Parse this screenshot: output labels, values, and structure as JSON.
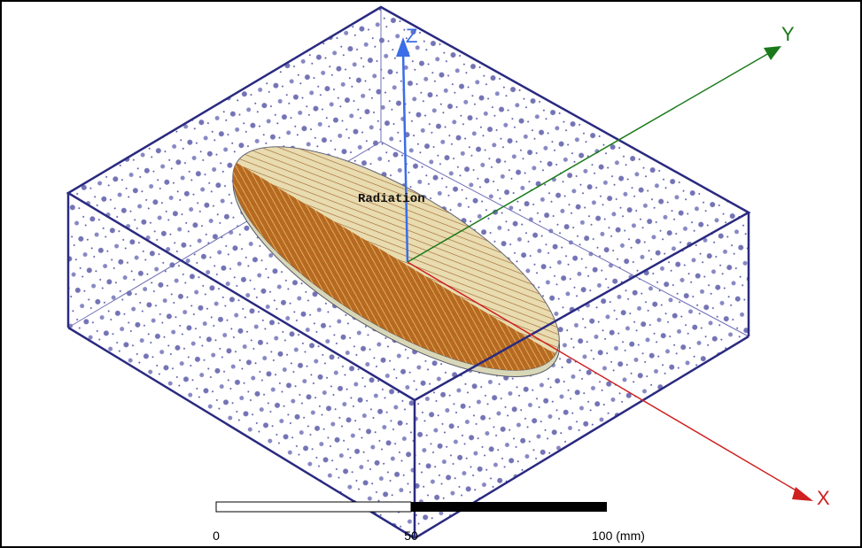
{
  "axes": {
    "x": "X",
    "y": "Y",
    "z": "Z"
  },
  "object_label": "Radiation",
  "scale_bar": {
    "labels": [
      "0",
      "50",
      "100 (mm)"
    ]
  }
}
